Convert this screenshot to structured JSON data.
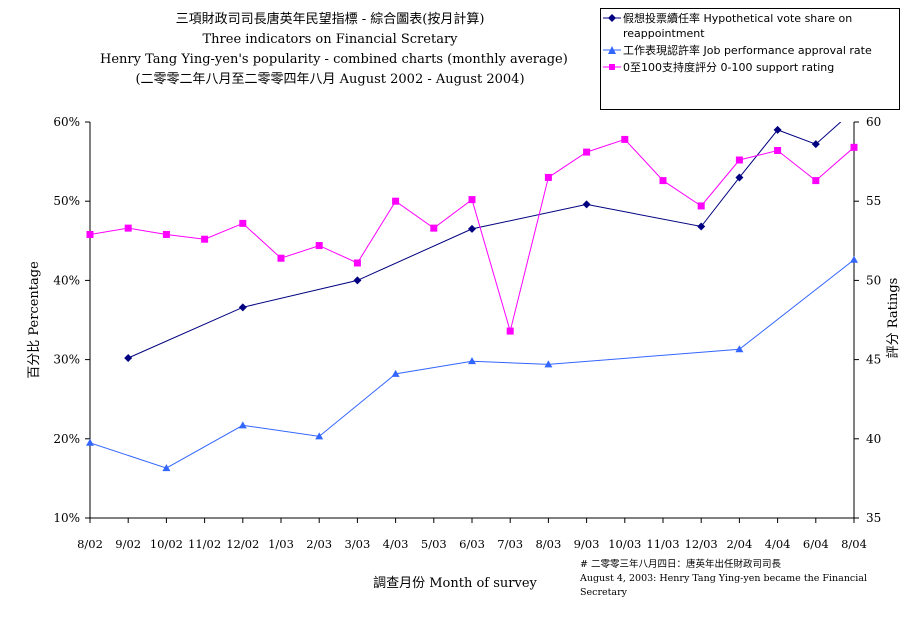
{
  "title": {
    "line1": "三項財政司司長唐英年民望指標 - 綜合圖表(按月計算)",
    "line2": "Three indicators on Financial Scretary",
    "line3": "Henry Tang Ying-yen's popularity - combined charts (monthly average)",
    "line4": "(二零零二年八月至二零零四年八月 August 2002 - August 2004)"
  },
  "note": {
    "line1": "# 二零零三年八月四日：唐英年出任財政司司長",
    "line2": "August 4, 2003: Henry Tang Ying-yen became the Financial Secretary"
  },
  "colors": {
    "vote": "#000080",
    "job": "#3366ff",
    "support": "#ff00ff"
  },
  "chart_data": {
    "type": "line",
    "title": "Three indicators on Financial Scretary",
    "xlabel": "調查月份 Month of survey",
    "ylabel": "百分比 Percentage",
    "y2label": "評分 Ratings",
    "categories": [
      "8/02",
      "9/02",
      "10/02",
      "11/02",
      "12/02",
      "1/03",
      "2/03",
      "3/03",
      "4/03",
      "5/03",
      "6/03",
      "7/03",
      "8/03",
      "9/03",
      "10/03",
      "11/03",
      "12/03",
      "2/04",
      "4/04",
      "6/04",
      "8/04"
    ],
    "ylim": [
      10,
      60
    ],
    "yticks": [
      "10%",
      "20%",
      "30%",
      "40%",
      "50%",
      "60%"
    ],
    "y2lim": [
      35,
      60
    ],
    "y2ticks": [
      "35",
      "40",
      "45",
      "50",
      "55",
      "60"
    ],
    "legend_position": "top-right",
    "grid": false,
    "series": [
      {
        "name": "假想投票續任率 Hypothetical vote share on reappointment",
        "axis": "left",
        "marker": "diamond",
        "values": [
          null,
          30.2,
          null,
          null,
          36.6,
          null,
          null,
          40.0,
          null,
          null,
          46.5,
          null,
          null,
          49.6,
          null,
          null,
          46.8,
          53.0,
          59.0,
          57.2,
          61.5
        ]
      },
      {
        "name": "工作表現認許率 Job performance approval rate",
        "axis": "left",
        "marker": "triangle",
        "values": [
          19.5,
          null,
          16.3,
          null,
          21.7,
          null,
          20.3,
          null,
          28.2,
          null,
          29.8,
          null,
          29.4,
          null,
          null,
          null,
          null,
          31.3,
          null,
          null,
          42.6
        ]
      },
      {
        "name": "0至100支持度評分 0-100 support rating",
        "axis": "right",
        "marker": "square",
        "values": [
          52.9,
          53.3,
          52.9,
          52.6,
          53.6,
          51.4,
          52.2,
          51.1,
          55.0,
          53.3,
          55.1,
          46.8,
          56.5,
          58.1,
          58.9,
          56.3,
          54.7,
          57.6,
          58.2,
          56.3,
          58.4
        ]
      }
    ]
  }
}
